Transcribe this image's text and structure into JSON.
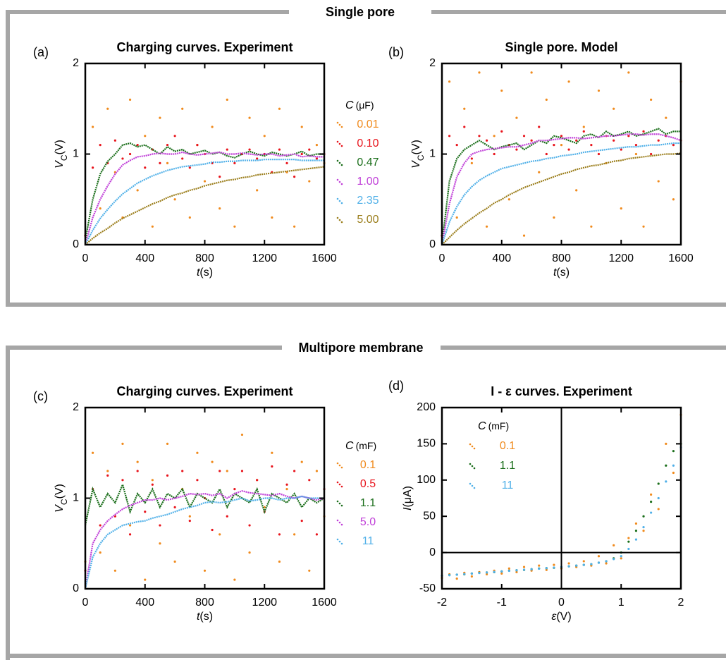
{
  "sections": [
    {
      "title": "Single pore"
    },
    {
      "title": "Multipore membrane"
    }
  ],
  "chart_data": [
    {
      "type": "scatter",
      "panel_label": "(a)",
      "title": "Charging curves. Experiment",
      "xlabel": "t",
      "xlabel_unit": "(s)",
      "ylabel": "V",
      "ylabel_sub": "C",
      "ylabel_unit": "(V)",
      "legend_title": "C",
      "legend_unit": "(μF)",
      "legend": "outside-right",
      "zero_lines": false,
      "xlim": [
        0,
        1600
      ],
      "xticks": [
        0,
        400,
        800,
        1200,
        1600
      ],
      "ylim": [
        0,
        2
      ],
      "yticks": [
        0,
        1,
        2
      ],
      "x": [
        0,
        50,
        100,
        150,
        200,
        250,
        300,
        350,
        400,
        450,
        500,
        550,
        600,
        650,
        700,
        750,
        800,
        850,
        900,
        950,
        1000,
        1050,
        1100,
        1150,
        1200,
        1250,
        1300,
        1350,
        1400,
        1450,
        1500,
        1550,
        1600
      ],
      "series": [
        {
          "name": "0.01",
          "color": "#f08a1c",
          "mode": "markers",
          "values": [
            0.1,
            1.3,
            0.4,
            1.5,
            0.8,
            0.3,
            1.6,
            0.6,
            1.2,
            0.2,
            1.4,
            0.9,
            0.5,
            1.5,
            0.3,
            1.1,
            0.7,
            1.3,
            0.4,
            1.6,
            0.2,
            1.0,
            1.4,
            0.6,
            1.2,
            0.3,
            1.5,
            0.8,
            0.2,
            1.3,
            0.7,
            1.1,
            0.9
          ]
        },
        {
          "name": "0.10",
          "color": "#e8141c",
          "mode": "markers",
          "values": [
            0.1,
            0.85,
            1.1,
            0.9,
            1.15,
            0.95,
            1.0,
            1.1,
            0.85,
            1.05,
            0.9,
            1.1,
            1.2,
            0.95,
            0.85,
            1.1,
            1.0,
            0.9,
            0.75,
            1.05,
            0.9,
            1.0,
            1.05,
            0.95,
            1.0,
            0.8,
            1.05,
            0.9,
            0.75,
            1.0,
            1.05,
            0.95,
            1.0
          ]
        },
        {
          "name": "0.47",
          "color": "#1a6e1a",
          "mode": "lines",
          "values": [
            0.05,
            0.5,
            0.78,
            0.92,
            1.0,
            1.1,
            1.12,
            1.08,
            1.1,
            1.05,
            1.0,
            1.08,
            1.03,
            1.05,
            1.0,
            1.02,
            1.04,
            1.0,
            1.02,
            0.98,
            0.96,
            1.0,
            1.03,
            1.0,
            0.98,
            1.02,
            1.0,
            0.98,
            1.0,
            1.03,
            0.98,
            1.0,
            1.0
          ]
        },
        {
          "name": "1.00",
          "color": "#c040d8",
          "mode": "lines",
          "values": [
            0,
            0.3,
            0.5,
            0.65,
            0.78,
            0.88,
            0.93,
            0.97,
            0.98,
            1.0,
            1.01,
            1.0,
            1.0,
            1.02,
            1.0,
            0.99,
            1.0,
            1.01,
            1.02,
            1.0,
            1.0,
            1.01,
            1.0,
            0.99,
            1.0,
            1.0,
            0.98,
            0.99,
            1.0,
            0.97,
            0.98,
            0.97,
            0.97
          ]
        },
        {
          "name": "2.35",
          "color": "#50b0e8",
          "mode": "lines",
          "values": [
            0,
            0.16,
            0.29,
            0.39,
            0.48,
            0.56,
            0.62,
            0.68,
            0.72,
            0.76,
            0.79,
            0.82,
            0.84,
            0.86,
            0.87,
            0.88,
            0.89,
            0.91,
            0.91,
            0.92,
            0.92,
            0.93,
            0.93,
            0.93,
            0.94,
            0.94,
            0.94,
            0.94,
            0.94,
            0.93,
            0.93,
            0.93,
            0.93
          ]
        },
        {
          "name": "5.00",
          "color": "#9b7e1c",
          "mode": "lines",
          "values": [
            0,
            0.07,
            0.13,
            0.18,
            0.24,
            0.29,
            0.33,
            0.37,
            0.41,
            0.45,
            0.48,
            0.52,
            0.55,
            0.57,
            0.6,
            0.62,
            0.65,
            0.67,
            0.69,
            0.71,
            0.72,
            0.74,
            0.75,
            0.77,
            0.78,
            0.79,
            0.8,
            0.81,
            0.82,
            0.83,
            0.84,
            0.85,
            0.86
          ]
        }
      ]
    },
    {
      "type": "scatter",
      "panel_label": "(b)",
      "title": "Single pore. Model",
      "xlabel": "t",
      "xlabel_unit": "(s)",
      "ylabel": "V",
      "ylabel_sub": "C",
      "ylabel_unit": "(V)",
      "legend": "none",
      "zero_lines": false,
      "xlim": [
        0,
        1600
      ],
      "xticks": [
        0,
        400,
        800,
        1200,
        1600
      ],
      "ylim": [
        0,
        2
      ],
      "yticks": [
        0,
        1,
        2
      ],
      "x": [
        0,
        50,
        100,
        150,
        200,
        250,
        300,
        350,
        400,
        450,
        500,
        550,
        600,
        650,
        700,
        750,
        800,
        850,
        900,
        950,
        1000,
        1050,
        1100,
        1150,
        1200,
        1250,
        1300,
        1350,
        1400,
        1450,
        1500,
        1550,
        1600
      ],
      "series": [
        {
          "color": "#f08a1c",
          "mode": "markers",
          "values": [
            0.1,
            1.8,
            0.3,
            1.5,
            0.9,
            1.9,
            0.2,
            1.2,
            1.7,
            0.5,
            1.4,
            0.1,
            1.9,
            0.8,
            1.6,
            0.3,
            1.1,
            1.8,
            0.6,
            1.3,
            0.2,
            1.7,
            0.9,
            1.5,
            0.4,
            1.9,
            1.0,
            0.2,
            1.6,
            0.7,
            1.4,
            0.5,
            1.8
          ]
        },
        {
          "color": "#e8141c",
          "mode": "markers",
          "values": [
            0.1,
            1.2,
            1.1,
            1.3,
            0.95,
            1.2,
            1.15,
            1.0,
            1.25,
            1.1,
            1.05,
            1.2,
            1.15,
            1.3,
            1.0,
            1.1,
            1.2,
            1.05,
            1.15,
            1.25,
            1.1,
            1.0,
            1.2,
            1.15,
            1.05,
            1.2,
            1.1,
            1.25,
            1.0,
            1.15,
            1.2,
            1.1,
            1.15
          ]
        },
        {
          "color": "#1a6e1a",
          "mode": "lines",
          "values": [
            0,
            0.7,
            0.95,
            1.05,
            1.1,
            1.15,
            1.1,
            1.05,
            1.08,
            1.1,
            1.12,
            1.05,
            1.1,
            1.15,
            1.12,
            1.2,
            1.18,
            1.15,
            1.12,
            1.2,
            1.22,
            1.18,
            1.25,
            1.2,
            1.22,
            1.25,
            1.2,
            1.22,
            1.25,
            1.28,
            1.22,
            1.25,
            1.25
          ]
        },
        {
          "color": "#c040d8",
          "mode": "lines",
          "values": [
            0,
            0.45,
            0.75,
            0.9,
            1.0,
            1.03,
            1.05,
            1.06,
            1.07,
            1.08,
            1.08,
            1.1,
            1.12,
            1.15,
            1.15,
            1.16,
            1.17,
            1.18,
            1.18,
            1.17,
            1.18,
            1.19,
            1.2,
            1.2,
            1.21,
            1.22,
            1.22,
            1.21,
            1.22,
            1.22,
            1.2,
            1.18,
            1.15
          ]
        },
        {
          "color": "#50b0e8",
          "mode": "lines",
          "values": [
            0,
            0.25,
            0.42,
            0.55,
            0.64,
            0.71,
            0.76,
            0.8,
            0.84,
            0.86,
            0.88,
            0.9,
            0.92,
            0.93,
            0.95,
            0.96,
            0.98,
            0.99,
            1.0,
            1.02,
            1.03,
            1.04,
            1.05,
            1.06,
            1.07,
            1.08,
            1.08,
            1.09,
            1.1,
            1.1,
            1.11,
            1.12,
            1.12
          ]
        },
        {
          "color": "#9b7e1c",
          "mode": "lines",
          "values": [
            0,
            0.08,
            0.16,
            0.23,
            0.29,
            0.35,
            0.4,
            0.46,
            0.5,
            0.55,
            0.59,
            0.63,
            0.66,
            0.69,
            0.72,
            0.75,
            0.78,
            0.8,
            0.83,
            0.85,
            0.87,
            0.88,
            0.9,
            0.92,
            0.93,
            0.95,
            0.96,
            0.97,
            0.98,
            0.99,
            1.0,
            1.0,
            1.01
          ]
        }
      ]
    },
    {
      "type": "scatter",
      "panel_label": "(c)",
      "title": "Charging curves. Experiment",
      "xlabel": "t",
      "xlabel_unit": "(s)",
      "ylabel": "V",
      "ylabel_sub": "C",
      "ylabel_unit": "(V)",
      "legend_title": "C",
      "legend_unit": "(mF)",
      "legend": "outside-right",
      "zero_lines": false,
      "xlim": [
        0,
        1600
      ],
      "xticks": [
        0,
        400,
        800,
        1200,
        1600
      ],
      "ylim": [
        0,
        2
      ],
      "yticks": [
        0,
        1,
        2
      ],
      "x": [
        0,
        50,
        100,
        150,
        200,
        250,
        300,
        350,
        400,
        450,
        500,
        550,
        600,
        650,
        700,
        750,
        800,
        850,
        900,
        950,
        1000,
        1050,
        1100,
        1150,
        1200,
        1250,
        1300,
        1350,
        1400,
        1450,
        1500,
        1550,
        1600
      ],
      "series": [
        {
          "name": "0.1",
          "color": "#f08a1c",
          "mode": "markers",
          "values": [
            0.3,
            1.5,
            0.4,
            1.3,
            0.2,
            1.6,
            0.7,
            1.4,
            0.1,
            1.2,
            0.5,
            1.6,
            0.3,
            1.1,
            0.8,
            1.5,
            0.2,
            1.4,
            0.6,
            1.3,
            0.1,
            1.7,
            0.4,
            1.2,
            0.9,
            1.5,
            0.3,
            1.1,
            0.6,
            1.4,
            0.2,
            1.3,
            0.8
          ]
        },
        {
          "name": "0.5",
          "color": "#e8141c",
          "mode": "markers",
          "values": [
            0.2,
            1.1,
            0.7,
            1.25,
            0.8,
            1.2,
            0.6,
            1.3,
            0.85,
            1.15,
            0.7,
            1.25,
            0.9,
            1.3,
            0.75,
            1.2,
            1.0,
            0.65,
            1.3,
            0.8,
            1.1,
            1.3,
            0.7,
            1.2,
            0.85,
            1.35,
            0.6,
            1.15,
            1.3,
            0.75,
            1.2,
            0.6,
            1.1
          ]
        },
        {
          "name": "1.1",
          "color": "#1a6e1a",
          "mode": "lines",
          "values": [
            0.7,
            1.1,
            0.9,
            1.05,
            0.95,
            1.15,
            0.85,
            1.05,
            0.95,
            1.1,
            0.9,
            1.05,
            1.0,
            1.1,
            0.9,
            1.05,
            1.0,
            0.95,
            1.1,
            0.9,
            1.05,
            1.0,
            0.95,
            1.1,
            0.85,
            1.05,
            1.0,
            0.95,
            1.05,
            0.9,
            1.0,
            0.95,
            1.0
          ]
        },
        {
          "name": "5.0",
          "color": "#c040d8",
          "mode": "lines",
          "values": [
            0,
            0.5,
            0.65,
            0.75,
            0.82,
            0.88,
            0.92,
            0.95,
            0.98,
            0.98,
            1.0,
            0.98,
            1.0,
            1.02,
            1.05,
            1.04,
            1.05,
            1.03,
            1.05,
            1.0,
            1.05,
            1.08,
            1.06,
            1.05,
            1.04,
            1.03,
            1.05,
            1.02,
            1.0,
            1.02,
            1.0,
            0.98,
            1.0
          ]
        },
        {
          "name": "11",
          "color": "#50b0e8",
          "mode": "lines",
          "values": [
            0,
            0.35,
            0.5,
            0.6,
            0.65,
            0.7,
            0.72,
            0.74,
            0.75,
            0.78,
            0.8,
            0.82,
            0.85,
            0.88,
            0.9,
            0.92,
            0.95,
            0.96,
            0.95,
            0.96,
            0.98,
            1.0,
            0.97,
            0.98,
            1.0,
            1.0,
            0.98,
            1.0,
            1.0,
            1.02,
            1.0,
            1.0,
            1.0
          ]
        }
      ]
    },
    {
      "type": "scatter",
      "panel_label": "(d)",
      "title": "I - ε curves. Experiment",
      "xlabel": "ε",
      "xlabel_unit": "(V)",
      "ylabel": "I",
      "ylabel_unit": "(μA)",
      "legend_title": "C",
      "legend_unit": "(mF)",
      "legend": "upper-left",
      "zero_lines": true,
      "xlim": [
        -2,
        2
      ],
      "xticks": [
        -2,
        -1,
        0,
        1,
        2
      ],
      "ylim": [
        -50,
        200
      ],
      "yticks": [
        -50,
        0,
        50,
        100,
        150,
        200
      ],
      "x": [
        -2,
        -1.875,
        -1.75,
        -1.625,
        -1.5,
        -1.375,
        -1.25,
        -1.125,
        -1,
        -0.875,
        -0.75,
        -0.625,
        -0.5,
        -0.375,
        -0.25,
        -0.125,
        0,
        0.125,
        0.25,
        0.375,
        0.5,
        0.625,
        0.75,
        0.875,
        1,
        1.125,
        1.25,
        1.375,
        1.5,
        1.625,
        1.75,
        1.875,
        2
      ],
      "series": [
        {
          "name": "0.1",
          "color": "#f08a1c",
          "mode": "markers",
          "values": [
            -35,
            -30,
            -36,
            -28,
            -33,
            -27,
            -30,
            -25,
            -29,
            -22,
            -27,
            -20,
            -25,
            -18,
            -24,
            -17,
            -22,
            -15,
            -20,
            -12,
            -18,
            -5,
            -15,
            10,
            -8,
            20,
            40,
            30,
            80,
            60,
            150,
            110,
            190
          ]
        },
        {
          "name": "1.1",
          "color": "#1a6e1a",
          "mode": "markers",
          "values": [
            -32,
            -31,
            -30.5,
            -30,
            -29,
            -28,
            -27.5,
            -27,
            -26,
            -25,
            -24.5,
            -24,
            -23,
            -22,
            -21.5,
            -21,
            -20,
            -19,
            -18,
            -17,
            -16,
            -14,
            -12,
            -8,
            0,
            15,
            30,
            50,
            70,
            95,
            120,
            140,
            150
          ]
        },
        {
          "name": "11",
          "color": "#50b0e8",
          "mode": "markers",
          "values": [
            -32,
            -31.25,
            -30.5,
            -29.75,
            -29,
            -28.25,
            -27.5,
            -26.75,
            -26,
            -25.25,
            -24.5,
            -23.75,
            -23,
            -22.25,
            -21.5,
            -20.75,
            -20,
            -19,
            -18,
            -17,
            -16,
            -14,
            -12,
            -9,
            -5,
            5,
            18,
            35,
            55,
            75,
            98,
            120,
            145
          ]
        }
      ]
    }
  ]
}
